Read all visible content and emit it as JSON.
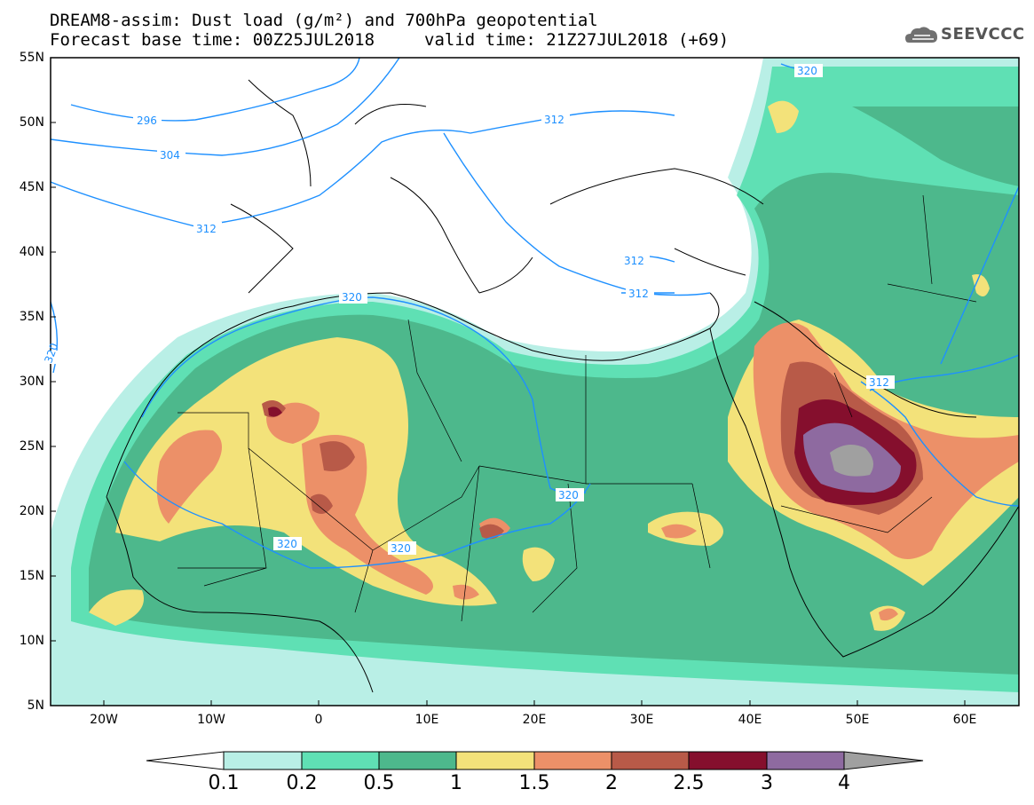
{
  "title": {
    "line1": "DREAM8-assim: Dust load (g/m²) and 700hPa geopotential",
    "line2": "Forecast base time: 00Z25JUL2018",
    "valid": "valid time: 21Z27JUL2018 (+69)"
  },
  "logo": {
    "text": "SEEVCCC",
    "icon": "cloud-logo-icon"
  },
  "axes": {
    "lat_labels": [
      "55N",
      "50N",
      "45N",
      "40N",
      "35N",
      "30N",
      "25N",
      "20N",
      "15N",
      "10N",
      "5N"
    ],
    "lon_labels": [
      "20W",
      "10W",
      "0",
      "10E",
      "20E",
      "30E",
      "40E",
      "50E",
      "60E"
    ]
  },
  "contour_labels": [
    "296",
    "304",
    "312",
    "312",
    "312",
    "312",
    "320",
    "320",
    "320",
    "320",
    "320",
    "320",
    "312"
  ],
  "colorbar": {
    "labels": [
      "0.1",
      "0.2",
      "0.5",
      "1",
      "1.5",
      "2",
      "2.5",
      "3",
      "4"
    ],
    "colors": [
      "#ffffff",
      "#b9efe6",
      "#5fe0b4",
      "#4db88c",
      "#f3e27a",
      "#ec9068",
      "#b85a48",
      "#850f2d",
      "#8e6aa0",
      "#a0a0a0"
    ]
  }
}
